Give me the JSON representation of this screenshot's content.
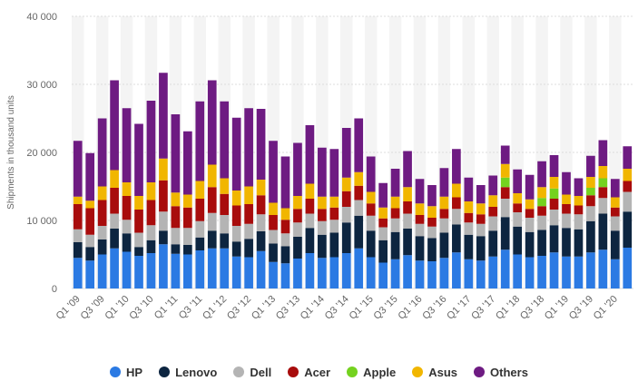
{
  "chart_data": {
    "type": "bar",
    "stacked": true,
    "ylabel": "Shipments in thousand units",
    "ylim": [
      0,
      40000
    ],
    "yticks": [
      "0",
      "10 000",
      "20 000",
      "30 000",
      "40 000"
    ],
    "ytick_values": [
      0,
      10000,
      20000,
      30000,
      40000
    ],
    "grid": true,
    "legend_position": "bottom",
    "categories": [
      "Q1 '09",
      "Q2 '09",
      "Q3 '09",
      "Q4 '09",
      "Q1 '10",
      "Q2 '10",
      "Q3 '10",
      "Q4 '10",
      "Q1 '11",
      "Q2 '11",
      "Q3 '11",
      "Q4 '11",
      "Q1 '12",
      "Q2 '12",
      "Q3 '12",
      "Q4 '12",
      "Q1 '13",
      "Q2 '13",
      "Q3 '13",
      "Q4 '13",
      "Q1 '14",
      "Q2 '14",
      "Q3 '14",
      "Q4 '14",
      "Q1 '15",
      "Q2 '15",
      "Q3 '15",
      "Q4 '15",
      "Q1 '16",
      "Q2 '16",
      "Q3 '16",
      "Q4 '16",
      "Q1 '17",
      "Q2 '17",
      "Q3 '17",
      "Q4 '17",
      "Q1 '18",
      "Q2 '18",
      "Q3 '18",
      "Q4 '18",
      "Q1 '19",
      "Q2 '19",
      "Q3 '19",
      "Q4 '19",
      "Q1 '20",
      "Q2 '20"
    ],
    "shown_xlabels": [
      "Q1 '09",
      "Q3 '09",
      "Q1 '10",
      "Q3 '10",
      "Q1 '11",
      "Q3 '11",
      "Q1 '12",
      "Q3 '12",
      "Q1 '13",
      "Q3 '13",
      "Q1 '14",
      "Q3 '14",
      "Q1 '15",
      "Q3 '15",
      "Q1 '16",
      "Q3 '16",
      "Q1 '17",
      "Q3 '17",
      "Q1 '18",
      "Q3 '18",
      "Q1 '19",
      "Q3 '19",
      "Q1 '20"
    ],
    "series": [
      {
        "name": "HP",
        "color": "#2b7ae3",
        "values": [
          4500,
          4100,
          5000,
          5900,
          5400,
          4800,
          5200,
          6500,
          5100,
          5000,
          5600,
          5900,
          5900,
          4700,
          4600,
          5500,
          3900,
          3700,
          4400,
          5200,
          4500,
          4600,
          5200,
          5900,
          4600,
          3800,
          4300,
          4900,
          4100,
          4000,
          4500,
          5300,
          4300,
          4100,
          4700,
          5700,
          5000,
          4600,
          4800,
          5300,
          4700,
          4700,
          5300,
          5700,
          4300,
          6000
        ]
      },
      {
        "name": "Lenovo",
        "color": "#0d2540",
        "values": [
          2300,
          2000,
          2200,
          2900,
          2700,
          1300,
          1900,
          2000,
          1400,
          1400,
          1900,
          2600,
          2200,
          2200,
          2700,
          2900,
          2700,
          2500,
          3200,
          3700,
          3400,
          3600,
          4500,
          4800,
          3900,
          3300,
          4000,
          3900,
          3600,
          3400,
          3700,
          4100,
          3600,
          3600,
          3800,
          4800,
          4100,
          3700,
          3800,
          4000,
          4200,
          4000,
          4600,
          5300,
          4200,
          5300
        ]
      },
      {
        "name": "Dell",
        "color": "#b4b4b4",
        "values": [
          1900,
          1800,
          2000,
          2200,
          2000,
          2100,
          2200,
          2800,
          2400,
          2500,
          2400,
          2600,
          2700,
          2300,
          2200,
          2500,
          2000,
          1900,
          2100,
          2100,
          2000,
          1900,
          2300,
          2300,
          2200,
          1900,
          2000,
          2200,
          1800,
          1700,
          2100,
          2300,
          1800,
          1800,
          2100,
          2700,
          2100,
          2100,
          2100,
          2300,
          2100,
          2200,
          2200,
          2300,
          2100,
          2900
        ]
      },
      {
        "name": "Acer",
        "color": "#a80c0c",
        "values": [
          3700,
          3900,
          3800,
          3800,
          3500,
          3400,
          3700,
          4600,
          3200,
          3000,
          3300,
          3800,
          3100,
          3000,
          2900,
          2800,
          2200,
          2000,
          2000,
          2200,
          1800,
          1800,
          2300,
          2100,
          1800,
          1300,
          1500,
          1800,
          1300,
          1300,
          1400,
          1700,
          1400,
          1400,
          1400,
          1700,
          1300,
          1300,
          1400,
          1600,
          1400,
          1300,
          1600,
          1600,
          1300,
          1600
        ]
      },
      {
        "name": "Apple",
        "color": "#74d21f",
        "values": [
          0,
          0,
          0,
          0,
          0,
          0,
          0,
          0,
          0,
          0,
          0,
          0,
          0,
          0,
          0,
          0,
          0,
          0,
          0,
          0,
          0,
          0,
          0,
          0,
          0,
          0,
          0,
          0,
          0,
          0,
          0,
          0,
          0,
          0,
          0,
          1400,
          0,
          0,
          1200,
          1500,
          0,
          0,
          1100,
          1300,
          0,
          0
        ]
      },
      {
        "name": "Asus",
        "color": "#f1b600",
        "values": [
          1100,
          1100,
          2000,
          2600,
          2000,
          2000,
          2600,
          3200,
          2000,
          1900,
          2600,
          3300,
          2300,
          2200,
          2600,
          2300,
          1800,
          1700,
          1900,
          2200,
          1800,
          1600,
          2000,
          2000,
          1700,
          1600,
          1700,
          2100,
          1700,
          1700,
          1800,
          2000,
          1700,
          1600,
          1700,
          2000,
          1500,
          1400,
          1600,
          1700,
          1400,
          1400,
          1600,
          1800,
          1500,
          1800
        ]
      },
      {
        "name": "Others",
        "color": "#6e1b82",
        "values": [
          8200,
          7000,
          10000,
          13200,
          10900,
          10600,
          12000,
          12600,
          11500,
          9300,
          11700,
          12400,
          11300,
          10700,
          11500,
          10400,
          9100,
          7600,
          7800,
          8600,
          7200,
          7000,
          7300,
          7900,
          5200,
          3600,
          4100,
          5300,
          3600,
          3100,
          4200,
          5100,
          3500,
          2700,
          2900,
          2700,
          3500,
          3600,
          3800,
          3200,
          3300,
          2600,
          3100,
          3800,
          2700,
          3300
        ]
      }
    ]
  },
  "legend": {
    "items": [
      {
        "label": "HP",
        "color": "#2b7ae3"
      },
      {
        "label": "Lenovo",
        "color": "#0d2540"
      },
      {
        "label": "Dell",
        "color": "#b4b4b4"
      },
      {
        "label": "Acer",
        "color": "#a80c0c"
      },
      {
        "label": "Apple",
        "color": "#74d21f"
      },
      {
        "label": "Asus",
        "color": "#f1b600"
      },
      {
        "label": "Others",
        "color": "#6e1b82"
      }
    ]
  }
}
